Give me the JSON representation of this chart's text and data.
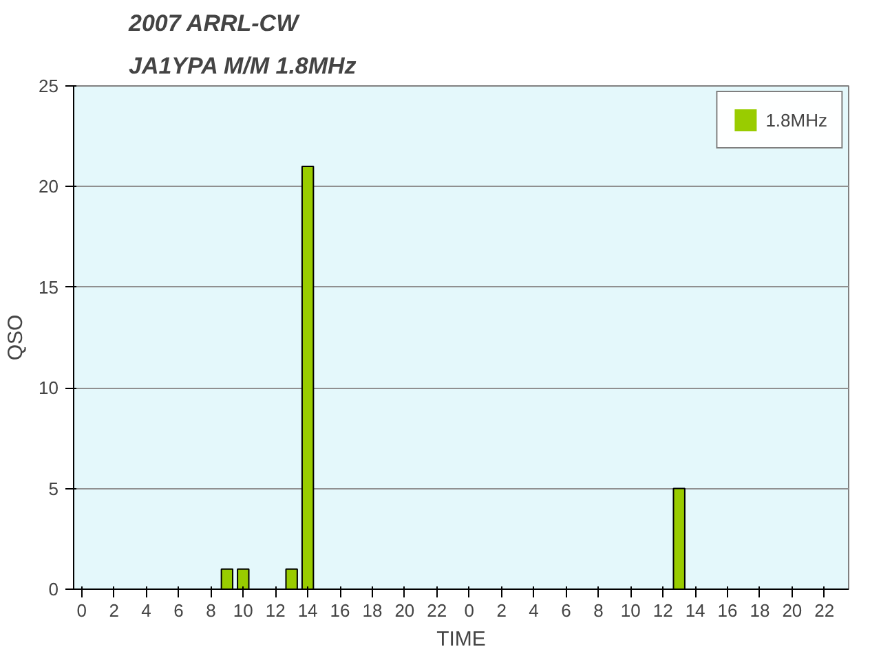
{
  "chart_data": {
    "type": "bar",
    "title": "2007 ARRL-CW",
    "subtitle": "JA1YPA M/M 1.8MHz",
    "xlabel": "TIME",
    "ylabel": "QSO",
    "categories": [
      "0",
      null,
      "2",
      null,
      "4",
      null,
      "6",
      null,
      "8",
      null,
      "10",
      null,
      "12",
      null,
      "14",
      null,
      "16",
      null,
      "18",
      null,
      "20",
      null,
      "22",
      null,
      "0",
      null,
      "2",
      null,
      "4",
      null,
      "6",
      null,
      "8",
      null,
      "10",
      null,
      "12",
      null,
      "14",
      null,
      "16",
      null,
      "18",
      null,
      "20",
      null,
      "22",
      null
    ],
    "series": [
      {
        "name": "1.8MHz",
        "color": "#99cc00",
        "values": [
          0,
          0,
          0,
          0,
          0,
          0,
          0,
          0,
          0,
          1,
          1,
          0,
          0,
          1,
          21,
          0,
          0,
          0,
          0,
          0,
          0,
          0,
          0,
          0,
          0,
          0,
          0,
          0,
          0,
          0,
          0,
          0,
          0,
          0,
          0,
          0,
          0,
          5,
          0,
          0,
          0,
          0,
          0,
          0,
          0,
          0,
          0,
          0
        ]
      }
    ],
    "ylim": [
      0,
      25
    ],
    "yticks": [
      0,
      5,
      10,
      15,
      20,
      25
    ],
    "grid": "y",
    "legend": "top right"
  }
}
